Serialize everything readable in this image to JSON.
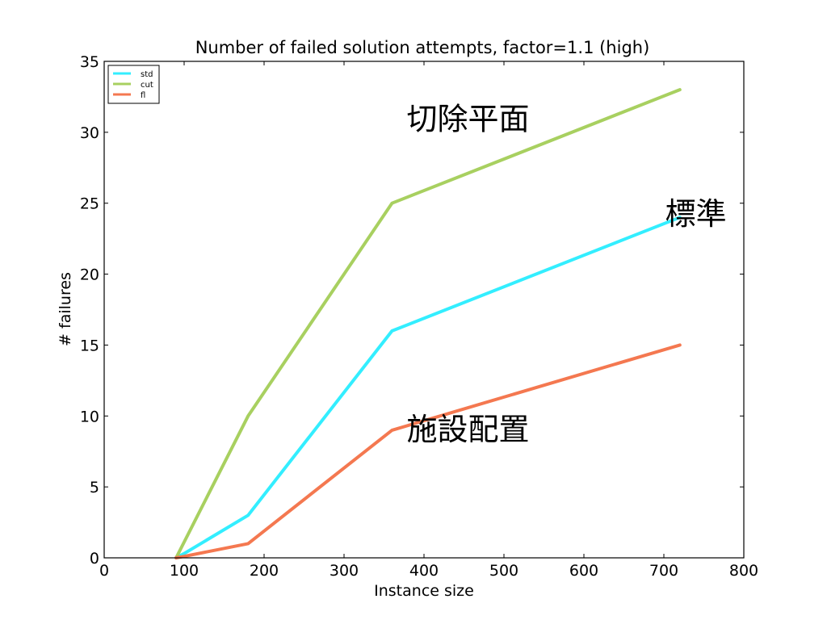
{
  "chart_data": {
    "type": "line",
    "title": "Number of failed solution attempts, factor=1.1 (high)",
    "xlabel": "Instance size",
    "ylabel": "# failures",
    "xlim": [
      0,
      800
    ],
    "ylim": [
      0,
      35
    ],
    "xticks": [
      0,
      100,
      200,
      300,
      400,
      500,
      600,
      700,
      800
    ],
    "yticks": [
      0,
      5,
      10,
      15,
      20,
      25,
      30,
      35
    ],
    "grid": false,
    "legend_position": "top-left",
    "series": [
      {
        "name": "std",
        "color": "#33eeff",
        "x": [
          90,
          100,
          180,
          360,
          720
        ],
        "y": [
          0,
          0.3,
          3,
          16,
          24
        ]
      },
      {
        "name": "cut",
        "color": "#a8d060",
        "x": [
          90,
          180,
          360,
          720
        ],
        "y": [
          0,
          10,
          25,
          33
        ]
      },
      {
        "name": "fl",
        "color": "#f47850",
        "x": [
          90,
          100,
          180,
          360,
          720
        ],
        "y": [
          0,
          0.1,
          1,
          9,
          15
        ]
      }
    ],
    "annotations": [
      {
        "text": "切除平面",
        "x": 455,
        "y": 30.2
      },
      {
        "text": "標準",
        "x": 740,
        "y": 23.5
      },
      {
        "text": "施設配置",
        "x": 455,
        "y": 8.3
      }
    ]
  }
}
